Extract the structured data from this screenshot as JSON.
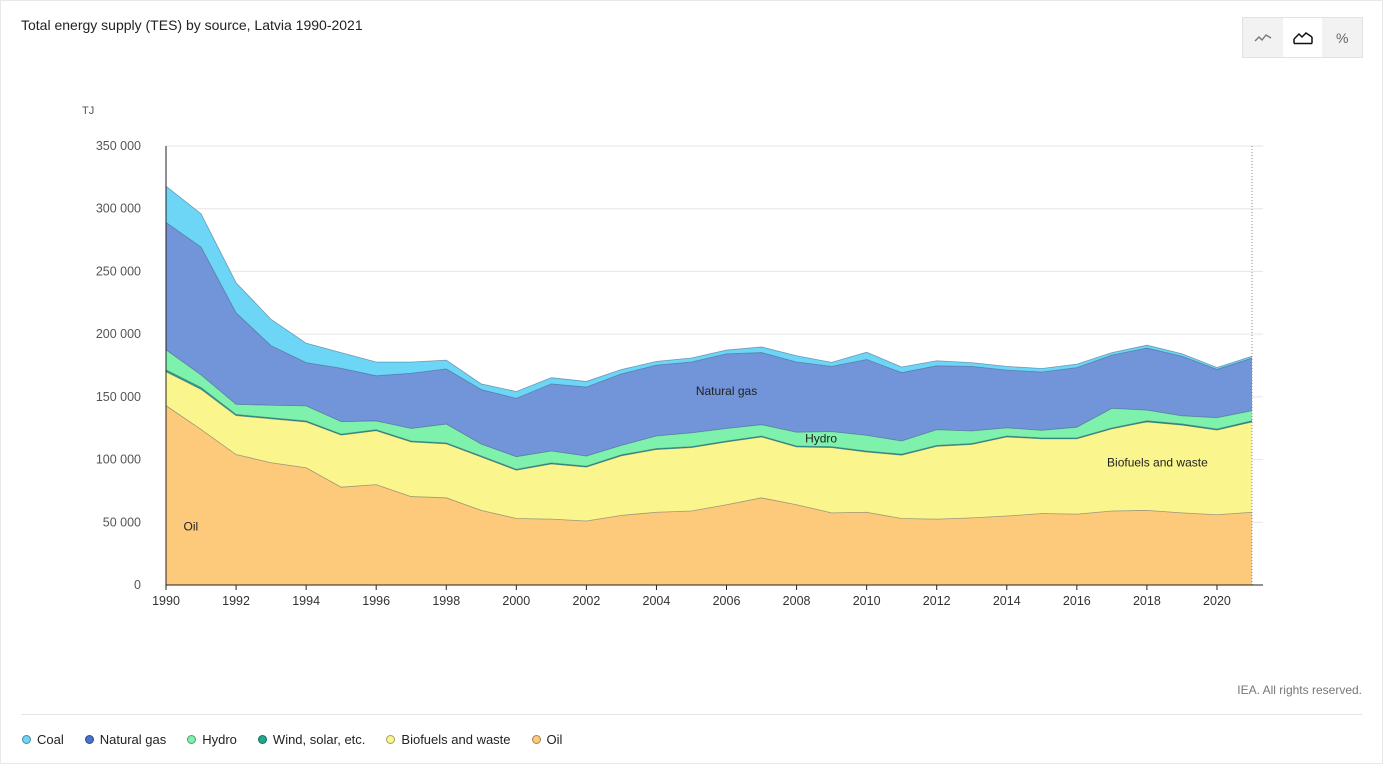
{
  "title": "Total energy supply (TES) by source, Latvia 1990-2021",
  "toolbar": {
    "buttons": [
      {
        "name": "line-chart-toggle",
        "icon": "line-chart-icon",
        "active": false
      },
      {
        "name": "area-chart-toggle",
        "icon": "area-chart-icon",
        "active": true
      },
      {
        "name": "percent-toggle",
        "label": "%",
        "active": false
      }
    ]
  },
  "copyright": "IEA. All rights reserved.",
  "colors": {
    "Coal": "#6dd6f7",
    "Natural gas": "#7294d9",
    "Hydro": "#7ef2ad",
    "Wind, solar, etc.": "#1fa88e",
    "Biofuels and waste": "#faf68d",
    "Oil": "#fdc97b"
  },
  "legend": [
    {
      "label": "Coal",
      "color": "#6dd6f7"
    },
    {
      "label": "Natural gas",
      "color": "#4a72cc"
    },
    {
      "label": "Hydro",
      "color": "#7ef2ad"
    },
    {
      "label": "Wind, solar, etc.",
      "color": "#1fa88e"
    },
    {
      "label": "Biofuels and waste",
      "color": "#faf68d"
    },
    {
      "label": "Oil",
      "color": "#fdc97b"
    }
  ],
  "chart_data": {
    "type": "area",
    "stacked": true,
    "title": "Total energy supply (TES) by source, Latvia 1990-2021",
    "ylabel": "TJ",
    "xlabel": "",
    "ylim": [
      0,
      350000
    ],
    "yticks": [
      0,
      50000,
      100000,
      150000,
      200000,
      250000,
      300000,
      350000
    ],
    "ytick_labels": [
      "0",
      "50 000",
      "100 000",
      "150 000",
      "200 000",
      "250 000",
      "300 000",
      "350 000"
    ],
    "xlim": [
      1990,
      2021
    ],
    "xticks": [
      1990,
      1992,
      1994,
      1996,
      1998,
      2000,
      2002,
      2004,
      2006,
      2008,
      2010,
      2012,
      2014,
      2016,
      2018,
      2020
    ],
    "grid": true,
    "x": [
      1990,
      1991,
      1992,
      1993,
      1994,
      1995,
      1996,
      1997,
      1998,
      1999,
      2000,
      2001,
      2002,
      2003,
      2004,
      2005,
      2006,
      2007,
      2008,
      2009,
      2010,
      2011,
      2012,
      2013,
      2014,
      2015,
      2016,
      2017,
      2018,
      2019,
      2020,
      2021
    ],
    "series": [
      {
        "name": "Oil",
        "values": [
          143000,
          124000,
          104000,
          97500,
          93500,
          78000,
          80000,
          70500,
          69500,
          59500,
          53000,
          52500,
          51000,
          55500,
          58000,
          59000,
          64000,
          69500,
          64000,
          57500,
          58000,
          53000,
          52500,
          53500,
          55000,
          57000,
          56500,
          59000,
          59500,
          57500,
          56000,
          58000
        ]
      },
      {
        "name": "Biofuels and waste",
        "values": [
          27000,
          32000,
          31000,
          35000,
          36500,
          41500,
          43000,
          43500,
          43000,
          42500,
          38500,
          44000,
          43000,
          47500,
          50000,
          50500,
          50000,
          48500,
          46000,
          52000,
          48000,
          50500,
          58000,
          58500,
          63000,
          59500,
          60000,
          65500,
          70500,
          70000,
          67500,
          72000
        ]
      },
      {
        "name": "Wind, solar, etc.",
        "values": [
          1500,
          1500,
          1000,
          800,
          800,
          800,
          800,
          800,
          800,
          800,
          800,
          800,
          800,
          800,
          800,
          800,
          800,
          800,
          800,
          800,
          800,
          800,
          800,
          800,
          800,
          800,
          800,
          800,
          900,
          900,
          900,
          900
        ]
      },
      {
        "name": "Hydro",
        "values": [
          16000,
          10000,
          8000,
          10000,
          12000,
          10000,
          7000,
          10000,
          15000,
          9500,
          10000,
          9500,
          8000,
          7500,
          10000,
          11000,
          10000,
          9000,
          11000,
          12000,
          12500,
          10500,
          12500,
          10000,
          6500,
          6000,
          8500,
          15500,
          8500,
          6500,
          9000,
          8000
        ]
      },
      {
        "name": "Natural gas",
        "values": [
          101500,
          102000,
          73000,
          47500,
          34500,
          42500,
          36000,
          44000,
          44000,
          43500,
          46500,
          53500,
          55000,
          57000,
          56500,
          56500,
          59500,
          57500,
          56000,
          52000,
          60500,
          54500,
          51000,
          51500,
          46000,
          46500,
          47500,
          42500,
          49500,
          47500,
          38500,
          42000
        ]
      },
      {
        "name": "Coal",
        "values": [
          29000,
          26500,
          24000,
          21000,
          15500,
          12500,
          11000,
          9000,
          7000,
          4500,
          5500,
          5000,
          4500,
          3500,
          3000,
          3200,
          3000,
          4500,
          5000,
          3200,
          5800,
          4500,
          4000,
          3000,
          3000,
          2800,
          2800,
          2000,
          2300,
          2000,
          1500,
          1500
        ]
      }
    ],
    "annotations": [
      {
        "text": "Oil",
        "series": "Oil"
      },
      {
        "text": "Biofuels and waste",
        "series": "Biofuels and waste"
      },
      {
        "text": "Hydro",
        "series": "Hydro"
      },
      {
        "text": "Natural gas",
        "series": "Natural gas"
      }
    ]
  }
}
